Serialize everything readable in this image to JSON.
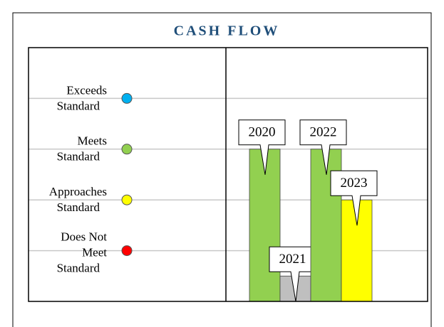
{
  "chart_data": {
    "type": "bar",
    "title": "CASH FLOW",
    "categories": [
      "2020",
      "2021",
      "2022",
      "2023"
    ],
    "values": [
      3,
      0.5,
      3,
      2
    ],
    "colors": [
      "#92d050",
      "#bfbfbf",
      "#92d050",
      "#ffff00"
    ],
    "ylim": [
      0,
      5
    ],
    "yticks": [
      {
        "value": 1,
        "label": [
          "Does Not",
          "Meet",
          "Standard"
        ]
      },
      {
        "value": 2,
        "label": [
          "Approaches",
          "Standard"
        ]
      },
      {
        "value": 3,
        "label": [
          "Meets",
          "Standard"
        ]
      },
      {
        "value": 4,
        "label": [
          "Exceeds",
          "Standard"
        ]
      }
    ],
    "tick_colors": [
      "#ff0000",
      "#ffff00",
      "#92d050",
      "#00b0f0"
    ],
    "grid": true
  }
}
